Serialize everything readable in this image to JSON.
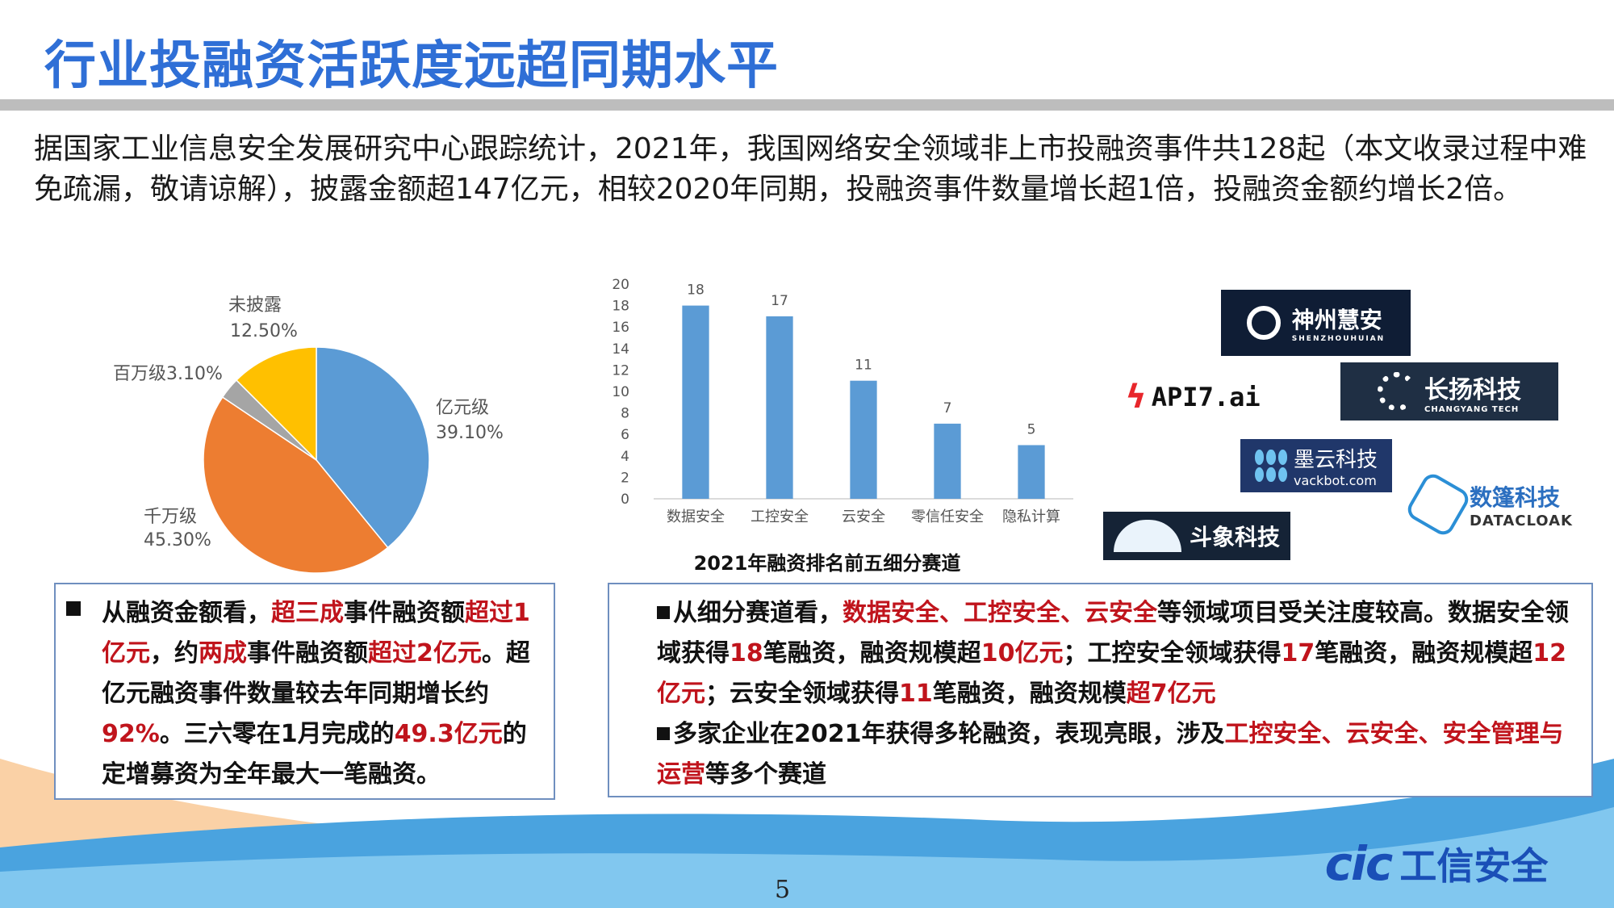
{
  "title": "行业投融资活跃度远超同期水平",
  "intro": "据国家工业信息安全发展研究中心跟踪统计，2021年，我国网络安全领域非上市投融资事件共128起（本文收录过程中难免疏漏，敬请谅解），披露金额超147亿元，相较2020年同期，投融资事件数量增长超1倍，投融资金额约增长2倍。",
  "chart_data": [
    {
      "type": "pie",
      "slices": [
        {
          "name": "亿元级",
          "label": "39.10%",
          "value": 39.1,
          "color": "#5b9bd5"
        },
        {
          "name": "千万级",
          "label": "45.30%",
          "value": 45.3,
          "color": "#ed7d31"
        },
        {
          "name": "百万级",
          "label": "3.10%",
          "value": 3.1,
          "color": "#a5a5a5"
        },
        {
          "name": "未披露",
          "label": "12.50%",
          "value": 12.5,
          "color": "#ffc000"
        }
      ]
    },
    {
      "type": "bar",
      "title": "2021年融资排名前五细分赛道",
      "categories": [
        "数据安全",
        "工控安全",
        "云安全",
        "零信任安全",
        "隐私计算"
      ],
      "values": [
        18,
        17,
        11,
        7,
        5
      ],
      "ylim": [
        0,
        20
      ],
      "yticks": [
        0,
        2,
        4,
        6,
        8,
        10,
        12,
        14,
        16,
        18,
        20
      ],
      "color": "#5b9bd5",
      "grid": false
    }
  ],
  "left_box": {
    "p1": "从融资金额看，",
    "r1": "超三成",
    "p2": "事件融资额",
    "r2": "超过1亿元",
    "p3": "，约",
    "r3": "两成",
    "p4": "事件融资额",
    "r4": "超过2亿元",
    "p5": "。超亿元融资事件数量较去年同期增长约",
    "r5": "92%",
    "p6": "。三六零在1月完成的",
    "r6": "49.3亿元",
    "p7": "的定增募资为全年最大一笔融资。"
  },
  "right_box": {
    "b1_p1": "从细分赛道看，",
    "b1_r1": "数据安全、工控安全、云安全",
    "b1_p2": "等领域项目受关注度较高。数据安全领域获得",
    "b1_r2": "18",
    "b1_p3": "笔融资，融资规模超",
    "b1_r3": "10亿元",
    "b1_p4": "；工控安全领域获得",
    "b1_r4": "17",
    "b1_p5": "笔融资，融资规模超",
    "b1_r5": "12亿元",
    "b1_p6": "；云安全领域获得",
    "b1_r6": "11",
    "b1_p7": "笔融资，融资规模",
    "b1_r7": "超7亿元",
    "b2_p1": "多家企业在2021年获得多轮融资，表现亮眼，涉及",
    "b2_r1": "工控安全、云安全、安全管理与运营",
    "b2_p2": "等多个赛道"
  },
  "logos": {
    "shenzhou": "神州慧安",
    "shenzhou_sub": "SHENZHOUHUIAN",
    "changyang": "长扬科技",
    "changyang_sub": "CHANGYANG TECH",
    "moyun": "墨云科技",
    "moyun_sub": "vackbot.com",
    "api7": "API7.ai",
    "datacloak": "数篷科技",
    "datacloak_sub": "DATACLOAK",
    "douxiang": "斗象科技",
    "cic": "工信安全"
  },
  "page_number": "5",
  "colors": {
    "title": "#2f6fd6",
    "accent_red": "#c0141c",
    "bar": "#5b9bd5"
  }
}
